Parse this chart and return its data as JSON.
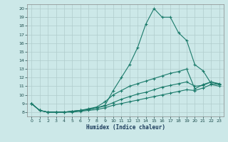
{
  "xlabel": "Humidex (Indice chaleur)",
  "bg_color": "#cce8e8",
  "grid_color": "#b0cccc",
  "line_color": "#1a7a6a",
  "xlim": [
    -0.5,
    23.5
  ],
  "ylim": [
    7.5,
    20.5
  ],
  "yticks": [
    8,
    9,
    10,
    11,
    12,
    13,
    14,
    15,
    16,
    17,
    18,
    19,
    20
  ],
  "xticks": [
    0,
    1,
    2,
    3,
    4,
    5,
    6,
    7,
    8,
    9,
    10,
    11,
    12,
    13,
    14,
    15,
    16,
    17,
    18,
    19,
    20,
    21,
    22,
    23
  ],
  "lines": [
    {
      "x": [
        0,
        1,
        2,
        3,
        4,
        5,
        6,
        7,
        8,
        9,
        10,
        11,
        12,
        13,
        14,
        15,
        16,
        17,
        18,
        19,
        20,
        21,
        22,
        23
      ],
      "y": [
        9.0,
        8.2,
        8.0,
        8.0,
        8.0,
        8.1,
        8.2,
        8.3,
        8.5,
        8.8,
        10.5,
        12.0,
        13.5,
        15.5,
        18.2,
        20.0,
        19.0,
        19.0,
        17.2,
        16.3,
        13.5,
        12.8,
        11.3,
        11.2
      ]
    },
    {
      "x": [
        0,
        1,
        2,
        3,
        4,
        5,
        6,
        7,
        8,
        9,
        10,
        11,
        12,
        13,
        14,
        15,
        16,
        17,
        18,
        19,
        20,
        21,
        22,
        23
      ],
      "y": [
        9.0,
        8.2,
        8.0,
        8.0,
        8.0,
        8.1,
        8.2,
        8.4,
        8.6,
        9.2,
        10.0,
        10.5,
        11.0,
        11.3,
        11.6,
        11.9,
        12.2,
        12.5,
        12.7,
        13.0,
        10.7,
        11.2,
        11.5,
        11.3
      ]
    },
    {
      "x": [
        0,
        1,
        2,
        3,
        4,
        5,
        6,
        7,
        8,
        9,
        10,
        11,
        12,
        13,
        14,
        15,
        16,
        17,
        18,
        19,
        20,
        21,
        22,
        23
      ],
      "y": [
        9.0,
        8.2,
        8.0,
        8.0,
        8.0,
        8.1,
        8.2,
        8.3,
        8.5,
        8.7,
        9.1,
        9.5,
        9.8,
        10.1,
        10.3,
        10.6,
        10.9,
        11.1,
        11.3,
        11.5,
        11.0,
        11.1,
        11.5,
        11.2
      ]
    },
    {
      "x": [
        0,
        1,
        2,
        3,
        4,
        5,
        6,
        7,
        8,
        9,
        10,
        11,
        12,
        13,
        14,
        15,
        16,
        17,
        18,
        19,
        20,
        21,
        22,
        23
      ],
      "y": [
        9.0,
        8.2,
        8.0,
        8.0,
        8.0,
        8.0,
        8.1,
        8.2,
        8.3,
        8.5,
        8.8,
        9.0,
        9.2,
        9.4,
        9.6,
        9.8,
        10.0,
        10.2,
        10.4,
        10.6,
        10.5,
        10.8,
        11.2,
        11.0
      ]
    }
  ]
}
